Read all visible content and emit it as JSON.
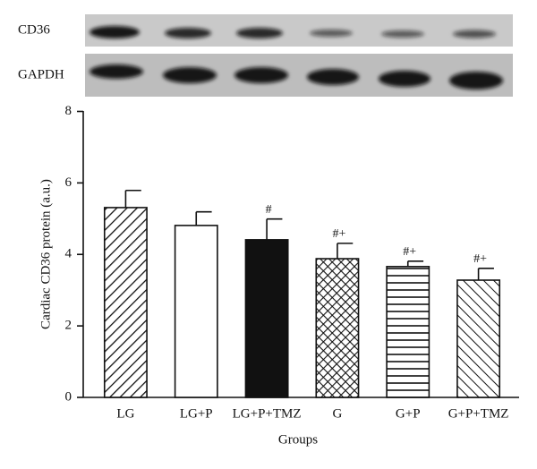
{
  "blot_labels": [
    "CD36",
    "GAPDH"
  ],
  "chart_data": {
    "type": "bar",
    "categories": [
      "LG",
      "LG+P",
      "LG+P+TMZ",
      "G",
      "G+P",
      "G+P+TMZ"
    ],
    "values": [
      5.31,
      4.81,
      4.41,
      3.88,
      3.66,
      3.28
    ],
    "errors": [
      0.48,
      0.38,
      0.58,
      0.43,
      0.15,
      0.33
    ],
    "annotations": [
      null,
      null,
      "#",
      "#+",
      "#+",
      "#+"
    ],
    "fills": [
      "diag-up",
      "none",
      "solid",
      "crosshatch",
      "horizontal",
      "diag-down"
    ],
    "color": "#111111",
    "ylabel": "Cardiac CD36 protein (a.u.)",
    "xlabel": "Groups",
    "ylim": [
      0,
      8
    ],
    "yticks": [
      0,
      2,
      4,
      6,
      8
    ],
    "grid": false
  }
}
